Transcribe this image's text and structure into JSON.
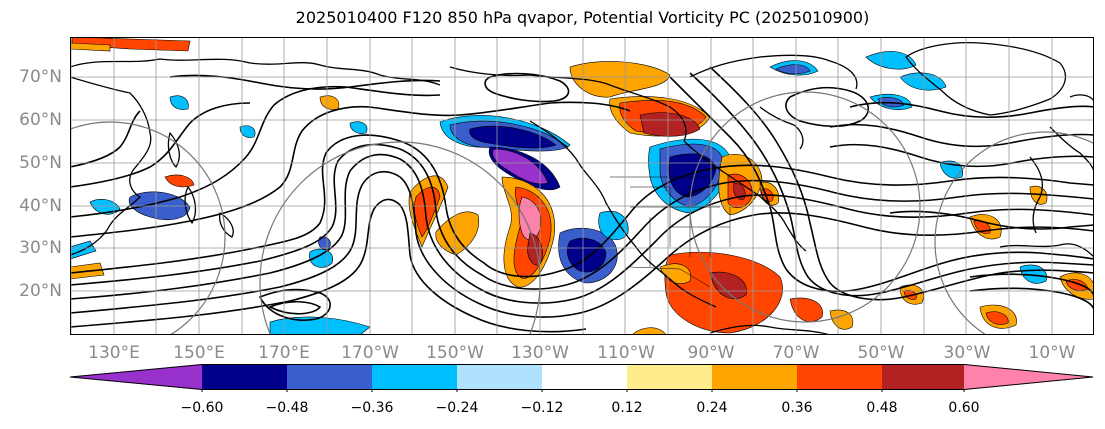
{
  "title": "2025010400 F120 850 hPa qvapor, Potential Vorticity PC (2025010900)",
  "lat_labels": [
    "70°N",
    "60°N",
    "50°N",
    "40°N",
    "30°N",
    "20°N"
  ],
  "lon_labels": [
    "130°E",
    "150°E",
    "170°E",
    "170°W",
    "150°W",
    "130°W",
    "110°W",
    "90°W",
    "70°W",
    "50°W",
    "30°W",
    "10°W"
  ],
  "colorbar": {
    "tick_labels": [
      "−0.60",
      "−0.48",
      "−0.36",
      "−0.24",
      "−0.12",
      "0.12",
      "0.24",
      "0.36",
      "0.48",
      "0.60"
    ],
    "colors": [
      "#9932cc",
      "#00008b",
      "#3a5fcd",
      "#00bfff",
      "#b0e2ff",
      "#ffffff",
      "#ffec8b",
      "#ffa500",
      "#ff4500",
      "#b22222",
      "#ff82ab"
    ]
  },
  "colors": {
    "grid": "#9a9a9a",
    "contour": "#000000",
    "coast": "#000000"
  }
}
